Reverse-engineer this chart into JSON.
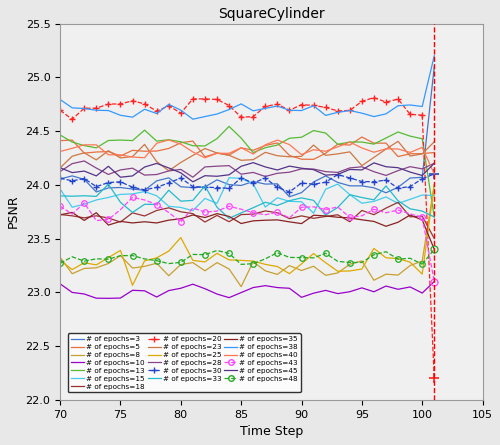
{
  "title": "SquareCylinder",
  "xlabel": "Time Step",
  "ylabel": "PSNR",
  "xlim": [
    70,
    105
  ],
  "ylim": [
    22,
    25.5
  ],
  "xticks": [
    70,
    75,
    80,
    85,
    90,
    95,
    100,
    105
  ],
  "yticks": [
    22,
    22.5,
    23,
    23.5,
    24,
    24.5,
    25,
    25.5
  ],
  "figsize": [
    5.0,
    4.45
  ],
  "dpi": 100,
  "series": [
    {
      "label": "# of epochs=3",
      "color": "#4477CC",
      "linestyle": "-",
      "marker": null,
      "base": 24.0,
      "amp": 0.08,
      "freq1": 7,
      "freq2": 4,
      "phase": 0.0,
      "noise_scale": 0.03,
      "spike": 25.1
    },
    {
      "label": "# of epochs=5",
      "color": "#E87040",
      "linestyle": "-",
      "marker": null,
      "base": 24.32,
      "amp": 0.07,
      "freq1": 8,
      "freq2": 5,
      "phase": 0.5,
      "noise_scale": 0.04,
      "spike": 24.3
    },
    {
      "label": "# of epochs=8",
      "color": "#C8A030",
      "linestyle": "-",
      "marker": null,
      "base": 23.22,
      "amp": 0.1,
      "freq1": 6,
      "freq2": 4,
      "phase": 1.0,
      "noise_scale": 0.06,
      "spike": 24.0
    },
    {
      "label": "# of epochs=10",
      "color": "#9900CC",
      "linestyle": "-",
      "marker": null,
      "base": 23.0,
      "amp": 0.04,
      "freq1": 9,
      "freq2": 6,
      "phase": 1.5,
      "noise_scale": 0.03,
      "spike": 23.1
    },
    {
      "label": "# of epochs=13",
      "color": "#55BB33",
      "linestyle": "-",
      "marker": null,
      "base": 24.42,
      "amp": 0.08,
      "freq1": 7,
      "freq2": 5,
      "phase": 2.0,
      "noise_scale": 0.04,
      "spike": 23.7
    },
    {
      "label": "# of epochs=15",
      "color": "#44CCEE",
      "linestyle": "-",
      "marker": null,
      "base": 23.87,
      "amp": 0.13,
      "freq1": 8,
      "freq2": 4,
      "phase": 2.5,
      "noise_scale": 0.05,
      "spike": 23.9
    },
    {
      "label": "# of epochs=18",
      "color": "#993333",
      "linestyle": "-",
      "marker": null,
      "base": 23.73,
      "amp": 0.04,
      "freq1": 10,
      "freq2": 6,
      "phase": 3.0,
      "noise_scale": 0.03,
      "spike": 23.5
    },
    {
      "label": "# of epochs=20",
      "color": "#FF2222",
      "linestyle": "--",
      "marker": "+",
      "base": 24.72,
      "amp": 0.08,
      "freq1": 7,
      "freq2": 5,
      "phase": 3.5,
      "noise_scale": 0.04,
      "spike": 22.2
    },
    {
      "label": "# of epochs=23",
      "color": "#CC7744",
      "linestyle": "-",
      "marker": null,
      "base": 24.28,
      "amp": 0.07,
      "freq1": 8,
      "freq2": 5,
      "phase": 4.0,
      "noise_scale": 0.04,
      "spike": 24.4
    },
    {
      "label": "# of epochs=25",
      "color": "#DDAA00",
      "linestyle": "-",
      "marker": null,
      "base": 23.28,
      "amp": 0.09,
      "freq1": 6,
      "freq2": 4,
      "phase": 4.5,
      "noise_scale": 0.06,
      "spike": 24.0
    },
    {
      "label": "# of epochs=28",
      "color": "#884488",
      "linestyle": "-",
      "marker": null,
      "base": 24.13,
      "amp": 0.05,
      "freq1": 9,
      "freq2": 6,
      "phase": 5.0,
      "noise_scale": 0.03,
      "spike": 24.2
    },
    {
      "label": "# of epochs=30",
      "color": "#2244CC",
      "linestyle": "--",
      "marker": "+",
      "base": 24.01,
      "amp": 0.05,
      "freq1": 7,
      "freq2": 5,
      "phase": 5.5,
      "noise_scale": 0.03,
      "spike": 24.1
    },
    {
      "label": "# of epochs=33",
      "color": "#22BBCC",
      "linestyle": "-",
      "marker": null,
      "base": 23.85,
      "amp": 0.12,
      "freq1": 8,
      "freq2": 4,
      "phase": 6.0,
      "noise_scale": 0.05,
      "spike": 23.7
    },
    {
      "label": "# of epochs=35",
      "color": "#882222",
      "linestyle": "-",
      "marker": null,
      "base": 23.68,
      "amp": 0.04,
      "freq1": 10,
      "freq2": 6,
      "phase": 6.5,
      "noise_scale": 0.03,
      "spike": 23.4
    },
    {
      "label": "# of epochs=38",
      "color": "#3399FF",
      "linestyle": "-",
      "marker": null,
      "base": 24.68,
      "amp": 0.06,
      "freq1": 7,
      "freq2": 5,
      "phase": 7.0,
      "noise_scale": 0.03,
      "spike": 25.2
    },
    {
      "label": "# of epochs=40",
      "color": "#FF7755",
      "linestyle": "-",
      "marker": null,
      "base": 24.32,
      "amp": 0.07,
      "freq1": 8,
      "freq2": 5,
      "phase": 7.5,
      "noise_scale": 0.04,
      "spike": 24.1
    },
    {
      "label": "# of epochs=43",
      "color": "#FF44FF",
      "linestyle": "--",
      "marker": "o",
      "base": 23.76,
      "amp": 0.06,
      "freq1": 7,
      "freq2": 4,
      "phase": 8.0,
      "noise_scale": 0.04,
      "spike": 23.1
    },
    {
      "label": "# of epochs=45",
      "color": "#553388",
      "linestyle": "-",
      "marker": null,
      "base": 24.14,
      "amp": 0.05,
      "freq1": 9,
      "freq2": 6,
      "phase": 8.5,
      "noise_scale": 0.03,
      "spike": 24.2
    },
    {
      "label": "# of epochs=48",
      "color": "#22AA22",
      "linestyle": "--",
      "marker": "o",
      "base": 23.32,
      "amp": 0.04,
      "freq1": 7,
      "freq2": 5,
      "phase": 9.0,
      "noise_scale": 0.03,
      "spike": 23.4
    }
  ],
  "vline_x": 101,
  "vline_color": "#FF0000",
  "vline_style": "--",
  "bg_color": "#e8e8e8",
  "ax_bg_color": "#f0f0f0"
}
